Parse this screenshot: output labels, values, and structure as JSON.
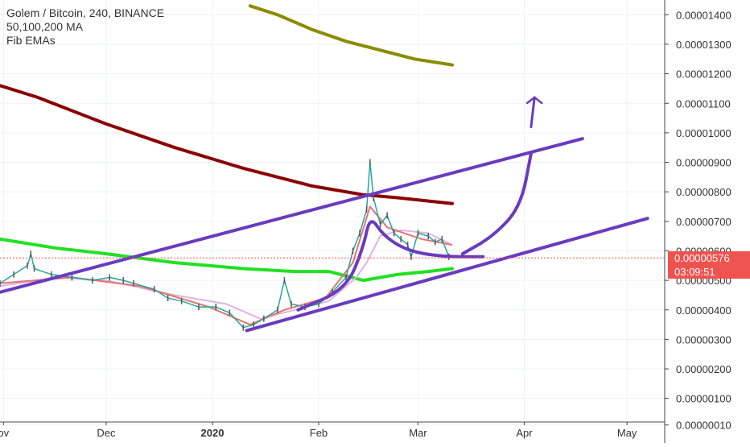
{
  "legend": {
    "symbol_line": "Golem / Bitcoin, 240, BINANCE",
    "ma_line": "50,100,200 MA",
    "ema_line": "Fib EMAs"
  },
  "price_tag": {
    "last_price": "0.00000576",
    "countdown": "03:09:51",
    "color": "#ef5350"
  },
  "chart_data": {
    "type": "line",
    "title": "Golem / Bitcoin, 240, BINANCE",
    "y_axis_ticks": [
      "0.00001400",
      "0.00001300",
      "0.00001200",
      "0.00001100",
      "0.00001000",
      "0.00000900",
      "0.00000800",
      "0.00000700",
      "0.00000600",
      "0.00000500",
      "0.00000400",
      "0.00000300",
      "0.00000200",
      "0.00000100",
      "0.00000010"
    ],
    "y_axis_tick_values": [
      1.4e-05,
      1.3e-05,
      1.2e-05,
      1.1e-05,
      1e-05,
      9e-06,
      8e-06,
      7e-06,
      6e-06,
      5e-06,
      4e-06,
      3e-06,
      2e-06,
      1e-06,
      1e-07
    ],
    "ylim": [
      2e-07,
      1.45e-05
    ],
    "x_axis_ticks": [
      "ov",
      "Dec",
      "2020",
      "Feb",
      "Mar",
      "Apr",
      "May"
    ],
    "x_axis_tick_days": [
      0,
      30,
      61,
      92,
      121,
      152,
      182
    ],
    "xlim_days": [
      -1,
      193
    ],
    "price_series": {
      "name": "GNT/BTC",
      "color": "#26a69a",
      "points": [
        [
          -1,
          4.9e-06
        ],
        [
          3,
          5.2e-06
        ],
        [
          7,
          5.5e-06
        ],
        [
          8,
          5.9e-06
        ],
        [
          9,
          5.4e-06
        ],
        [
          14,
          5.2e-06
        ],
        [
          20,
          5.1e-06
        ],
        [
          26,
          5e-06
        ],
        [
          31,
          5.1e-06
        ],
        [
          35,
          5e-06
        ],
        [
          38,
          4.9e-06
        ],
        [
          44,
          4.7e-06
        ],
        [
          48,
          4.4e-06
        ],
        [
          52,
          4.3e-06
        ],
        [
          57,
          4.1e-06
        ],
        [
          62,
          4.1e-06
        ],
        [
          66,
          3.9e-06
        ],
        [
          70,
          3.4e-06
        ],
        [
          73,
          3.5e-06
        ],
        [
          76,
          3.7e-06
        ],
        [
          80,
          4e-06
        ],
        [
          82,
          5e-06
        ],
        [
          84,
          4.2e-06
        ],
        [
          88,
          4.1e-06
        ],
        [
          92,
          4.2e-06
        ],
        [
          96,
          4.6e-06
        ],
        [
          100,
          5.1e-06
        ],
        [
          102,
          6e-06
        ],
        [
          104,
          6.6e-06
        ],
        [
          106,
          7.4e-06
        ],
        [
          107,
          9e-06
        ],
        [
          108,
          7.8e-06
        ],
        [
          110,
          6.9e-06
        ],
        [
          112,
          7.2e-06
        ],
        [
          114,
          6.6e-06
        ],
        [
          116,
          6.4e-06
        ],
        [
          118,
          6.2e-06
        ],
        [
          119,
          5.8e-06
        ],
        [
          121,
          6.6e-06
        ],
        [
          124,
          6.5e-06
        ],
        [
          126,
          6.3e-06
        ],
        [
          128,
          6.4e-06
        ],
        [
          130,
          5.8e-06
        ]
      ]
    },
    "moving_averages": [
      {
        "name": "",
        "color": "#8b8b00",
        "points": [
          [
            72,
            1.43e-05
          ],
          [
            80,
            1.4e-05
          ],
          [
            90,
            1.35e-05
          ],
          [
            100,
            1.31e-05
          ],
          [
            110,
            1.28e-05
          ],
          [
            120,
            1.25e-05
          ],
          [
            131,
            1.23e-05
          ]
        ]
      },
      {
        "name": "",
        "color": "#8b0000",
        "points": [
          [
            -1,
            1.16e-05
          ],
          [
            10,
            1.12e-05
          ],
          [
            30,
            1.03e-05
          ],
          [
            50,
            9.5e-06
          ],
          [
            70,
            8.8e-06
          ],
          [
            90,
            8.2e-06
          ],
          [
            105,
            7.9e-06
          ],
          [
            115,
            7.8e-06
          ],
          [
            131,
            7.6e-06
          ]
        ]
      },
      {
        "name": "",
        "color": "#22e022",
        "points": [
          [
            -1,
            6.4e-06
          ],
          [
            15,
            6.1e-06
          ],
          [
            30,
            5.9e-06
          ],
          [
            50,
            5.6e-06
          ],
          [
            70,
            5.4e-06
          ],
          [
            85,
            5.3e-06
          ],
          [
            95,
            5.3e-06
          ],
          [
            105,
            5e-06
          ],
          [
            115,
            5.2e-06
          ],
          [
            124,
            5.3e-06
          ],
          [
            131,
            5.4e-06
          ]
        ]
      }
    ],
    "short_averages": [
      {
        "name": "",
        "color": "#dfb3df",
        "points": [
          [
            -1,
            4.8e-06
          ],
          [
            15,
            5.1e-06
          ],
          [
            30,
            5e-06
          ],
          [
            50,
            4.5e-06
          ],
          [
            65,
            4.2e-06
          ],
          [
            75,
            3.7e-06
          ],
          [
            85,
            4e-06
          ],
          [
            95,
            4.3e-06
          ],
          [
            103,
            5.1e-06
          ],
          [
            106,
            5.6e-06
          ],
          [
            110,
            6.5e-06
          ],
          [
            116,
            6.7e-06
          ],
          [
            124,
            6.6e-06
          ],
          [
            131,
            6.2e-06
          ]
        ]
      },
      {
        "name": "",
        "color": "#e57373",
        "points": [
          [
            -1,
            4.9e-06
          ],
          [
            20,
            5.1e-06
          ],
          [
            40,
            4.8e-06
          ],
          [
            60,
            4.1e-06
          ],
          [
            72,
            3.5e-06
          ],
          [
            82,
            4e-06
          ],
          [
            94,
            4.4e-06
          ],
          [
            102,
            5.6e-06
          ],
          [
            107,
            7.5e-06
          ],
          [
            112,
            6.8e-06
          ],
          [
            122,
            6.4e-06
          ],
          [
            131,
            6.2e-06
          ]
        ]
      }
    ],
    "drawings": [
      {
        "kind": "channel-upper",
        "points": [
          [
            -1,
            4.6e-06
          ],
          [
            169,
            9.8e-06
          ]
        ]
      },
      {
        "kind": "channel-lower",
        "points": [
          [
            71,
            3.3e-06
          ],
          [
            188,
            7.1e-06
          ]
        ]
      },
      {
        "kind": "cup",
        "points": [
          [
            86,
            4e-06
          ],
          [
            100,
            4.7e-06
          ],
          [
            105,
            6.1e-06
          ],
          [
            107,
            7.2e-06
          ],
          [
            111,
            6.5e-06
          ],
          [
            118,
            6e-06
          ],
          [
            128,
            5.8e-06
          ],
          [
            140,
            5.8e-06
          ]
        ]
      },
      {
        "kind": "breakout-curve",
        "points": [
          [
            134,
            5.9e-06
          ],
          [
            143,
            6.5e-06
          ],
          [
            151,
            7.5e-06
          ],
          [
            154,
            9.3e-06
          ]
        ]
      },
      {
        "kind": "arrow",
        "points": [
          [
            154,
            1.02e-05
          ],
          [
            155,
            1.12e-05
          ]
        ]
      }
    ],
    "last_price": 5.76e-06,
    "grid": true,
    "legend_position": "top-left"
  }
}
